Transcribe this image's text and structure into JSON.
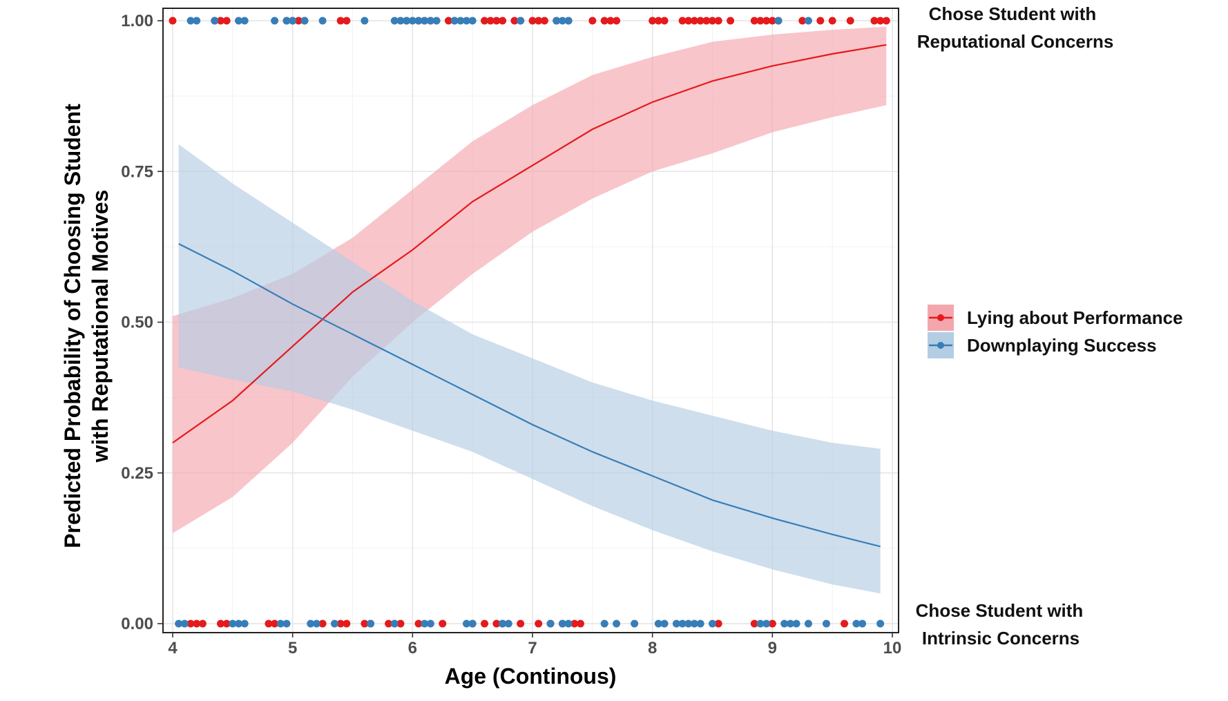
{
  "chart_data": {
    "type": "line",
    "xlabel": "Age (Continous)",
    "ylabel_line1": "Predicted Probability of Choosing Student",
    "ylabel_line2": "with Reputational Motives",
    "xlim": [
      4,
      10
    ],
    "ylim": [
      0,
      1
    ],
    "x_ticks": [
      4,
      5,
      6,
      7,
      8,
      9,
      10
    ],
    "y_ticks": [
      0.0,
      0.25,
      0.5,
      0.75,
      1.0
    ],
    "y_tick_labels": [
      "0.00",
      "0.25",
      "0.50",
      "0.75",
      "1.00"
    ],
    "grid": true,
    "legend_position": "right",
    "annotations": {
      "top_line1": "Chose Student with",
      "top_line2": "Reputational Concerns",
      "bottom_line1": "Chose Student with",
      "bottom_line2": "Intrinsic Concerns"
    },
    "series": [
      {
        "name": "Lying about Performance",
        "color": "#e41a1c",
        "ribbon_color": "#f4a6ad",
        "x": [
          4.0,
          4.5,
          5.0,
          5.5,
          6.0,
          6.5,
          7.0,
          7.5,
          8.0,
          8.5,
          9.0,
          9.5,
          9.95
        ],
        "fit": [
          0.3,
          0.37,
          0.46,
          0.55,
          0.62,
          0.7,
          0.76,
          0.82,
          0.865,
          0.9,
          0.925,
          0.945,
          0.96
        ],
        "lower": [
          0.15,
          0.21,
          0.3,
          0.41,
          0.5,
          0.58,
          0.65,
          0.705,
          0.75,
          0.78,
          0.815,
          0.84,
          0.86
        ],
        "upper": [
          0.51,
          0.54,
          0.58,
          0.64,
          0.72,
          0.8,
          0.86,
          0.91,
          0.94,
          0.965,
          0.977,
          0.985,
          0.99
        ],
        "points_at_1": [
          4.0,
          4.35,
          4.4,
          4.45,
          4.95,
          5.0,
          5.05,
          5.1,
          5.4,
          5.45,
          5.95,
          6.05,
          6.1,
          6.15,
          6.3,
          6.35,
          6.6,
          6.65,
          6.7,
          6.75,
          6.85,
          6.9,
          7.0,
          7.05,
          7.1,
          7.2,
          7.3,
          7.5,
          7.6,
          7.65,
          7.7,
          8.0,
          8.05,
          8.1,
          8.25,
          8.3,
          8.35,
          8.4,
          8.45,
          8.5,
          8.55,
          8.65,
          8.85,
          8.9,
          8.95,
          9.0,
          9.05,
          9.25,
          9.4,
          9.5,
          9.65,
          9.85,
          9.9,
          9.95
        ],
        "points_at_0": [
          4.15,
          4.2,
          4.25,
          4.4,
          4.45,
          4.8,
          4.85,
          5.25,
          5.4,
          5.45,
          5.6,
          5.65,
          5.8,
          5.85,
          5.9,
          6.05,
          6.25,
          6.5,
          6.6,
          6.7,
          6.75,
          6.9,
          7.05,
          7.15,
          7.25,
          7.35,
          7.4,
          8.55,
          8.85,
          9.0,
          9.6
        ]
      },
      {
        "name": "Downplaying Success",
        "color": "#377eb8",
        "ribbon_color": "#b3cde3",
        "x": [
          4.05,
          4.5,
          5.0,
          5.5,
          6.0,
          6.5,
          7.0,
          7.5,
          8.0,
          8.5,
          9.0,
          9.5,
          9.9
        ],
        "fit": [
          0.63,
          0.585,
          0.53,
          0.48,
          0.43,
          0.38,
          0.33,
          0.285,
          0.245,
          0.205,
          0.175,
          0.148,
          0.128
        ],
        "lower": [
          0.425,
          0.405,
          0.385,
          0.355,
          0.32,
          0.285,
          0.24,
          0.195,
          0.155,
          0.12,
          0.09,
          0.065,
          0.05
        ],
        "upper": [
          0.795,
          0.73,
          0.665,
          0.6,
          0.535,
          0.48,
          0.44,
          0.4,
          0.37,
          0.345,
          0.32,
          0.3,
          0.29
        ],
        "points_at_1": [
          4.15,
          4.2,
          4.35,
          4.55,
          4.6,
          4.85,
          4.95,
          5.0,
          5.1,
          5.25,
          5.6,
          5.85,
          5.9,
          5.95,
          6.0,
          6.05,
          6.1,
          6.15,
          6.2,
          6.35,
          6.4,
          6.45,
          6.5,
          6.9,
          7.2,
          7.25,
          7.3,
          9.05,
          9.3
        ],
        "points_at_0": [
          4.05,
          4.1,
          4.5,
          4.55,
          4.6,
          4.9,
          4.95,
          5.15,
          5.2,
          5.35,
          5.65,
          5.85,
          6.1,
          6.15,
          6.45,
          6.5,
          6.75,
          6.8,
          7.15,
          7.25,
          7.3,
          7.6,
          7.7,
          7.85,
          8.05,
          8.1,
          8.2,
          8.25,
          8.3,
          8.35,
          8.4,
          8.5,
          8.9,
          8.95,
          9.1,
          9.15,
          9.2,
          9.3,
          9.45,
          9.7,
          9.75,
          9.9
        ]
      }
    ]
  }
}
